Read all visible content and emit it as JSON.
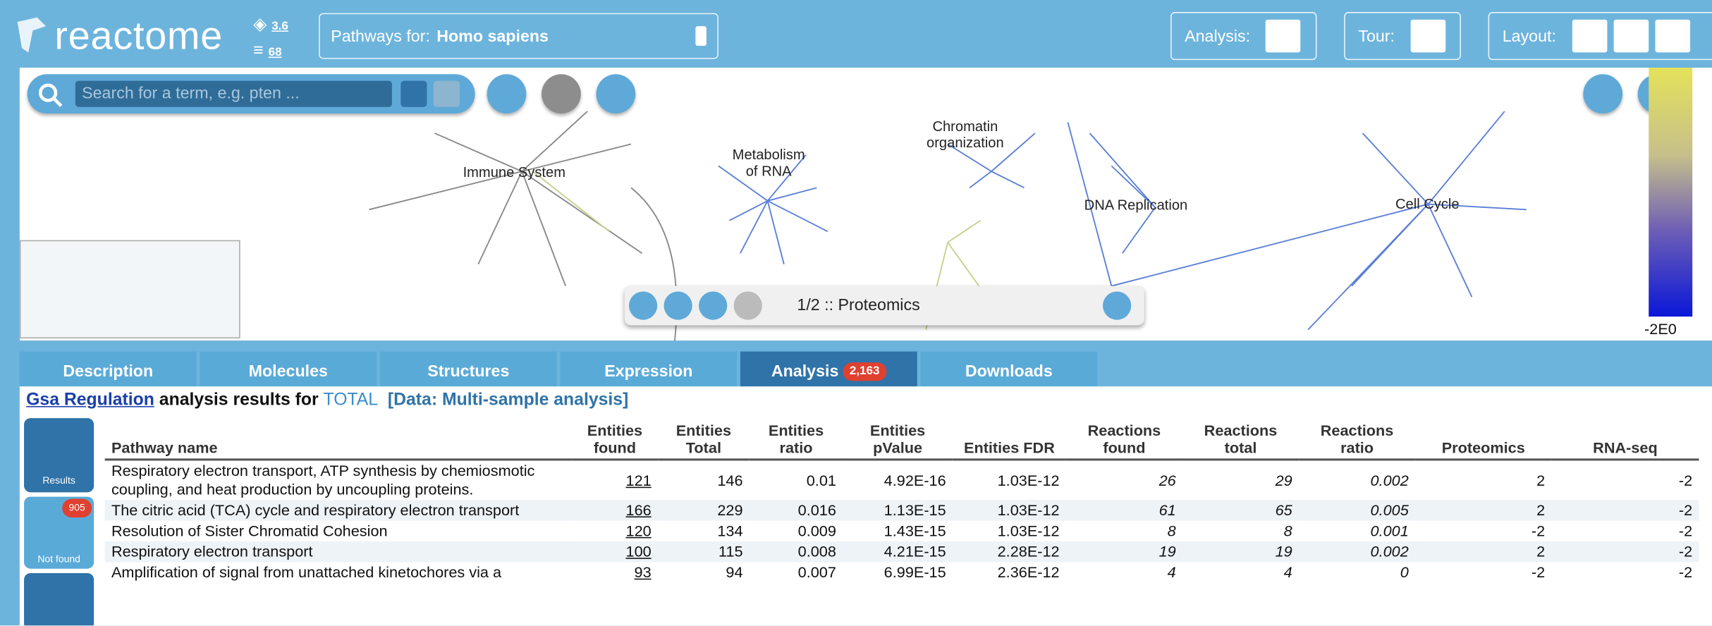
{
  "header": {
    "logo": "reactome",
    "release": "3.6",
    "count": "68",
    "species_label": "Pathways for:",
    "species": "Homo sapiens",
    "buttons": [
      "Analysis:",
      "Tour:",
      "Layout:"
    ]
  },
  "search": {
    "placeholder": "Search for a term, e.g. pten ..."
  },
  "diagram": {
    "labels": [
      "Immune System",
      "Metabolism of RNA",
      "Chromatin organization",
      "DNA Replication",
      "Cell Cycle"
    ],
    "player": "1/2 :: Proteomics",
    "legend_min": "-2E0"
  },
  "tabs": [
    "Description",
    "Molecules",
    "Structures",
    "Expression",
    "Analysis",
    "Downloads"
  ],
  "analysis_badge": "2,163",
  "results": {
    "link": "Gsa Regulation",
    "text": "analysis results for",
    "resource": "TOTAL",
    "data": "[Data: Multi-sample analysis]",
    "side": [
      {
        "label": "Results"
      },
      {
        "label": "Not found",
        "badge": "905"
      }
    ]
  },
  "table": {
    "columns": [
      "Pathway name",
      "Entities found",
      "Entities Total",
      "Entities ratio",
      "Entities pValue",
      "Entities FDR",
      "Reactions found",
      "Reactions total",
      "Reactions ratio",
      "Proteomics",
      "RNA-seq"
    ],
    "rows": [
      [
        "Respiratory electron transport, ATP synthesis by chemiosmotic coupling, and heat production by uncoupling proteins.",
        "121",
        "146",
        "0.01",
        "4.92E-16",
        "1.03E-12",
        "26",
        "29",
        "0.002",
        "2",
        "-2"
      ],
      [
        "The citric acid (TCA) cycle and respiratory electron transport",
        "166",
        "229",
        "0.016",
        "1.13E-15",
        "1.03E-12",
        "61",
        "65",
        "0.005",
        "2",
        "-2"
      ],
      [
        "Resolution of Sister Chromatid Cohesion",
        "120",
        "134",
        "0.009",
        "1.43E-15",
        "1.03E-12",
        "8",
        "8",
        "0.001",
        "-2",
        "-2"
      ],
      [
        "Respiratory electron transport",
        "100",
        "115",
        "0.008",
        "4.21E-15",
        "2.28E-12",
        "19",
        "19",
        "0.002",
        "2",
        "-2"
      ],
      [
        "Amplification of signal from unattached kinetochores via a",
        "93",
        "94",
        "0.007",
        "6.99E-15",
        "2.36E-12",
        "4",
        "4",
        "0",
        "-2",
        "-2"
      ]
    ]
  }
}
